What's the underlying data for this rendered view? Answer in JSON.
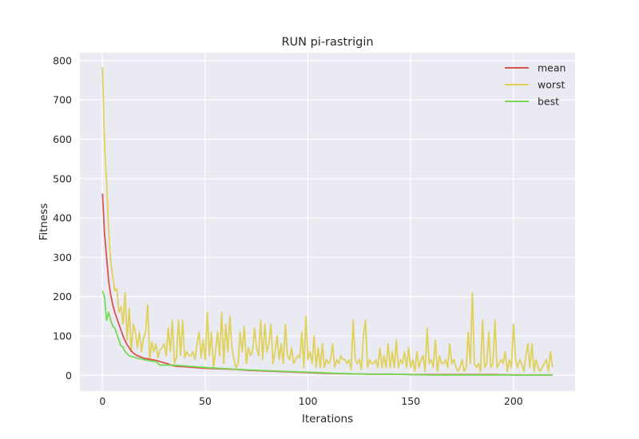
{
  "chart_data": {
    "type": "line",
    "title": "RUN pi-rastrigin",
    "xlabel": "Iterations",
    "ylabel": "Fitness",
    "xlim": [
      -11,
      230
    ],
    "ylim": [
      -40,
      820
    ],
    "xticks": [
      0,
      50,
      100,
      150,
      200
    ],
    "yticks": [
      0,
      100,
      200,
      300,
      400,
      500,
      600,
      700,
      800
    ],
    "grid": true,
    "legend_position": "top-right",
    "colors": {
      "background": "#eaeaf2",
      "grid": "#ffffff",
      "mean": "#d9534f",
      "worst": "#dfd15a",
      "best": "#77d855"
    },
    "series": [
      {
        "name": "mean",
        "x": [
          0,
          1,
          2,
          3,
          4,
          5,
          6,
          7,
          8,
          9,
          10,
          11,
          12,
          13,
          14,
          15,
          16,
          17,
          18,
          19,
          20,
          22,
          24,
          26,
          28,
          30,
          32,
          34,
          36,
          40,
          45,
          50,
          55,
          60,
          65,
          70,
          75,
          80,
          90,
          100,
          110,
          120,
          130,
          140,
          150,
          160,
          170,
          180,
          190,
          200,
          210,
          219
        ],
        "y": [
          462,
          360,
          300,
          240,
          205,
          180,
          160,
          145,
          130,
          115,
          100,
          88,
          78,
          70,
          62,
          57,
          53,
          50,
          48,
          46,
          44,
          42,
          40,
          38,
          35,
          32,
          29,
          25,
          23,
          22,
          20,
          18,
          17,
          16,
          15,
          13,
          12,
          11,
          9,
          7,
          5,
          4,
          3,
          3,
          2,
          2,
          2,
          2,
          2,
          1,
          1,
          1
        ]
      },
      {
        "name": "worst",
        "x": [
          0,
          1,
          2,
          3,
          4,
          5,
          6,
          7,
          8,
          9,
          10,
          11,
          12,
          13,
          14,
          15,
          16,
          17,
          18,
          19,
          20,
          21,
          22,
          23,
          24,
          25,
          26,
          27,
          28,
          29,
          30,
          31,
          32,
          33,
          34,
          35,
          36,
          37,
          38,
          39,
          40,
          41,
          42,
          43,
          44,
          45,
          46,
          47,
          48,
          49,
          50,
          51,
          52,
          53,
          54,
          55,
          56,
          57,
          58,
          59,
          60,
          61,
          62,
          63,
          64,
          65,
          66,
          67,
          68,
          69,
          70,
          71,
          72,
          73,
          74,
          75,
          76,
          77,
          78,
          79,
          80,
          81,
          82,
          83,
          84,
          85,
          86,
          87,
          88,
          89,
          90,
          91,
          92,
          93,
          94,
          95,
          96,
          97,
          98,
          99,
          100,
          101,
          102,
          103,
          104,
          105,
          106,
          107,
          108,
          109,
          110,
          111,
          112,
          113,
          114,
          115,
          116,
          117,
          118,
          119,
          120,
          121,
          122,
          123,
          124,
          125,
          126,
          127,
          128,
          129,
          130,
          131,
          132,
          133,
          134,
          135,
          136,
          137,
          138,
          139,
          140,
          141,
          142,
          143,
          144,
          145,
          146,
          147,
          148,
          149,
          150,
          151,
          152,
          153,
          154,
          155,
          156,
          157,
          158,
          159,
          160,
          161,
          162,
          163,
          164,
          165,
          166,
          167,
          168,
          169,
          170,
          171,
          172,
          173,
          174,
          175,
          176,
          177,
          178,
          179,
          180,
          181,
          182,
          183,
          184,
          185,
          186,
          187,
          188,
          189,
          190,
          191,
          192,
          193,
          194,
          195,
          196,
          197,
          198,
          199,
          200,
          201,
          202,
          203,
          204,
          205,
          206,
          207,
          208,
          209,
          210,
          211,
          212,
          213,
          214,
          215,
          216,
          217,
          218,
          219
        ],
        "y": [
          783,
          590,
          490,
          370,
          290,
          250,
          215,
          220,
          160,
          175,
          130,
          210,
          90,
          170,
          60,
          130,
          110,
          70,
          110,
          60,
          95,
          110,
          180,
          40,
          85,
          60,
          80,
          45,
          65,
          70,
          80,
          50,
          120,
          60,
          140,
          30,
          45,
          140,
          50,
          140,
          45,
          60,
          50,
          50,
          60,
          40,
          80,
          110,
          45,
          90,
          40,
          160,
          50,
          110,
          20,
          60,
          110,
          50,
          160,
          30,
          130,
          60,
          150,
          70,
          40,
          20,
          30,
          110,
          60,
          125,
          30,
          70,
          50,
          60,
          120,
          70,
          50,
          140,
          40,
          130,
          60,
          80,
          130,
          30,
          60,
          100,
          40,
          80,
          30,
          130,
          50,
          40,
          70,
          30,
          40,
          50,
          45,
          110,
          20,
          150,
          40,
          60,
          30,
          100,
          20,
          70,
          20,
          80,
          20,
          40,
          30,
          40,
          80,
          20,
          40,
          30,
          50,
          40,
          40,
          30,
          40,
          15,
          140,
          40,
          30,
          40,
          15,
          100,
          140,
          20,
          40,
          30,
          30,
          40,
          20,
          70,
          20,
          50,
          20,
          80,
          20,
          60,
          20,
          90,
          20,
          40,
          30,
          60,
          20,
          70,
          20,
          40,
          10,
          60,
          20,
          40,
          50,
          10,
          120,
          30,
          40,
          20,
          90,
          10,
          50,
          30,
          30,
          40,
          20,
          80,
          30,
          40,
          20,
          10,
          20,
          40,
          10,
          20,
          110,
          30,
          210,
          30,
          20,
          30,
          10,
          140,
          20,
          30,
          110,
          20,
          30,
          140,
          20,
          30,
          40,
          30,
          60,
          10,
          40,
          20,
          130,
          40,
          20,
          40,
          30,
          10,
          50,
          80,
          20,
          80,
          10,
          40,
          20,
          10,
          20,
          30,
          40,
          10,
          60,
          20
        ]
      },
      {
        "name": "best",
        "x": [
          0,
          1,
          2,
          3,
          4,
          5,
          6,
          7,
          8,
          9,
          10,
          11,
          12,
          13,
          14,
          15,
          16,
          17,
          18,
          19,
          20,
          22,
          24,
          26,
          28,
          30,
          34,
          40,
          50,
          60,
          70,
          80,
          90,
          100,
          110,
          120,
          130,
          140,
          150,
          160,
          170,
          180,
          190,
          200,
          210,
          219
        ],
        "y": [
          215,
          200,
          140,
          160,
          140,
          125,
          120,
          105,
          90,
          75,
          72,
          60,
          55,
          50,
          48,
          47,
          45,
          44,
          42,
          42,
          40,
          38,
          36,
          35,
          26,
          26,
          26,
          24,
          20,
          17,
          14,
          12,
          10,
          8,
          6,
          4,
          3,
          3,
          2,
          1,
          1,
          1,
          1,
          1,
          1,
          1
        ]
      }
    ]
  }
}
